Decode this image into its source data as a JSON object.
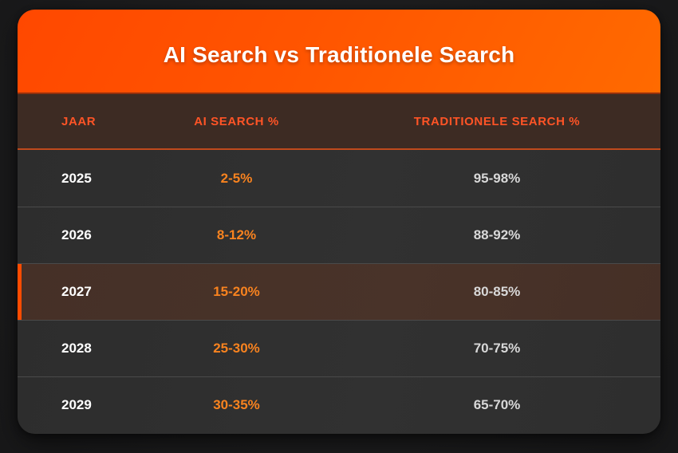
{
  "title": "AI Search vs Traditionele Search",
  "colors": {
    "banner_gradient_start": "#ff4800",
    "banner_gradient_end": "#ff6a00",
    "header_row_bg": "#3d2b23",
    "header_text": "#ff5426",
    "header_underline": "#c04a1c",
    "row_bg": "#2e2e2e",
    "row_divider": "#4a4a4a",
    "highlight_row_bg": "#473129",
    "highlight_left_border": "#ff4b00",
    "year_text": "#ffffff",
    "ai_value_text": "#f9831f",
    "trad_value_text": "#d8d8d8",
    "page_bg": "#1c1c1d"
  },
  "table": {
    "columns": [
      {
        "key": "year",
        "label": "JAAR"
      },
      {
        "key": "ai",
        "label": "AI SEARCH %"
      },
      {
        "key": "trad",
        "label": "TRADITIONELE SEARCH %"
      }
    ],
    "rows": [
      {
        "year": "2025",
        "ai": "2-5%",
        "trad": "95-98%",
        "highlighted": false
      },
      {
        "year": "2026",
        "ai": "8-12%",
        "trad": "88-92%",
        "highlighted": false
      },
      {
        "year": "2027",
        "ai": "15-20%",
        "trad": "80-85%",
        "highlighted": true
      },
      {
        "year": "2028",
        "ai": "25-30%",
        "trad": "70-75%",
        "highlighted": false
      },
      {
        "year": "2029",
        "ai": "30-35%",
        "trad": "65-70%",
        "highlighted": false
      }
    ]
  },
  "chart_data": {
    "type": "table",
    "title": "AI Search vs Traditionele Search",
    "columns": [
      "JAAR",
      "AI SEARCH %",
      "TRADITIONELE SEARCH %"
    ],
    "rows": [
      [
        "2025",
        "2-5%",
        "95-98%"
      ],
      [
        "2026",
        "8-12%",
        "88-92%"
      ],
      [
        "2027",
        "15-20%",
        "80-85%"
      ],
      [
        "2028",
        "25-30%",
        "70-75%"
      ],
      [
        "2029",
        "30-35%",
        "65-70%"
      ]
    ],
    "highlighted_row": "2027",
    "layout_hints": {
      "highlight_style": "orange left border + brown background",
      "value_emphasis": "AI column in orange, traditional column in light gray"
    }
  }
}
